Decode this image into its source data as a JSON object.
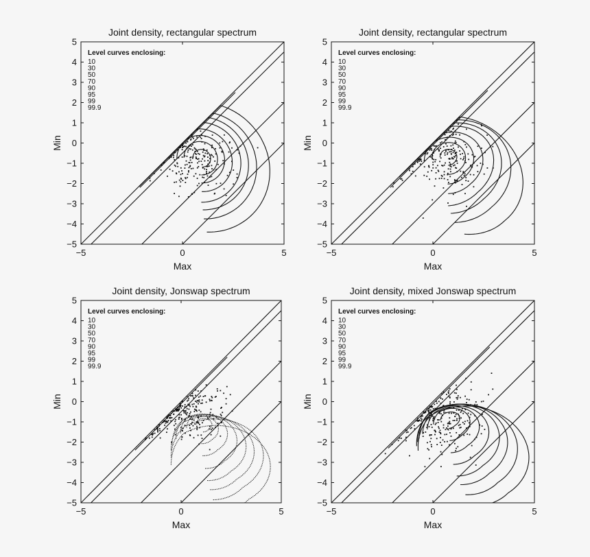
{
  "figure": {
    "background": "#f6f6f6",
    "ink": "#111111"
  },
  "chart_data": [
    {
      "type": "contour",
      "title": "Joint density, rectangular spectrum",
      "xlabel": "Max",
      "ylabel": "Min",
      "xlim": [
        -5,
        5
      ],
      "ylim": [
        -5,
        5
      ],
      "xticks": [
        -5,
        0,
        5
      ],
      "yticks": [
        -5,
        -4,
        -3,
        -2,
        -1,
        0,
        1,
        2,
        3,
        4,
        5
      ],
      "xtick_labels": [
        "−5",
        "0",
        "5"
      ],
      "ytick_labels": [
        "−5",
        "−4",
        "−3",
        "−2",
        "−1",
        "0",
        "1",
        "2",
        "3",
        "4",
        "5"
      ],
      "annotation": {
        "heading": "Level curves enclosing:",
        "levels": [
          "10",
          "30",
          "50",
          "70",
          "90",
          "95",
          "99",
          "99.9"
        ]
      },
      "diagonal_lines": [
        {
          "x": [
            -4.5,
            5
          ],
          "y": [
            -5,
            4.5
          ]
        },
        {
          "x": [
            -5,
            5
          ],
          "y": [
            -5,
            5
          ]
        },
        {
          "x": [
            -2,
            5
          ],
          "y": [
            -5,
            2
          ]
        },
        {
          "x": [
            0,
            5
          ],
          "y": [
            -5,
            0
          ]
        }
      ],
      "contours": [
        {
          "level": "10",
          "center": [
            0.95,
            -0.75
          ],
          "rx": 0.45,
          "ry": 0.42,
          "skew": 0,
          "rise": 0
        },
        {
          "level": "30",
          "center": [
            0.9,
            -0.75
          ],
          "rx": 0.85,
          "ry": 0.8,
          "skew": 0,
          "rise": 0
        },
        {
          "level": "50",
          "center": [
            0.9,
            -0.8
          ],
          "rx": 1.2,
          "ry": 1.15,
          "skew": 0,
          "rise": 0
        },
        {
          "level": "70",
          "center": [
            0.9,
            -0.85
          ],
          "rx": 1.6,
          "ry": 1.5,
          "skew": 0,
          "rise": 0
        },
        {
          "level": "90",
          "center": [
            0.9,
            -0.95
          ],
          "rx": 2.0,
          "ry": 1.95,
          "skew": 0,
          "rise": 0
        },
        {
          "level": "95",
          "center": [
            0.95,
            -1.0
          ],
          "rx": 2.35,
          "ry": 2.25,
          "skew": 0,
          "rise": 0
        },
        {
          "level": "99",
          "center": [
            1.0,
            -1.1
          ],
          "rx": 2.7,
          "ry": 2.6,
          "skew": 0,
          "rise": 0
        },
        {
          "level": "99.9",
          "center": [
            1.1,
            -1.2
          ],
          "rx": 3.3,
          "ry": 3.1,
          "skew": 0,
          "rise": 0
        }
      ],
      "cap_line_shift": 0.0,
      "cap_x_range": [
        -2.1,
        2.6
      ],
      "scatter": {
        "count": 210,
        "center": [
          0.8,
          -0.8
        ],
        "spread": [
          0.95,
          0.8
        ],
        "seed": 11
      }
    },
    {
      "type": "contour",
      "title": "Joint density, rectangular spectrum",
      "xlabel": "Max",
      "ylabel": "Min",
      "xlim": [
        -5,
        5
      ],
      "ylim": [
        -5,
        5
      ],
      "xticks": [
        -5,
        0,
        5
      ],
      "yticks": [
        -5,
        -4,
        -3,
        -2,
        -1,
        0,
        1,
        2,
        3,
        4,
        5
      ],
      "xtick_labels": [
        "−5",
        "0",
        "5"
      ],
      "ytick_labels": [
        "−5",
        "−4",
        "−3",
        "−2",
        "−1",
        "0",
        "1",
        "2",
        "3",
        "4",
        "5"
      ],
      "annotation": {
        "heading": "Level curves enclosing:",
        "levels": [
          "10",
          "30",
          "50",
          "70",
          "90",
          "95",
          "99",
          "99.9"
        ]
      },
      "diagonal_lines": [
        {
          "x": [
            -4.5,
            5
          ],
          "y": [
            -5,
            4.5
          ]
        },
        {
          "x": [
            -5,
            5
          ],
          "y": [
            -5,
            5
          ]
        },
        {
          "x": [
            -2,
            5
          ],
          "y": [
            -5,
            2
          ]
        },
        {
          "x": [
            0,
            5
          ],
          "y": [
            -5,
            0
          ]
        }
      ],
      "contours": [
        {
          "level": "10",
          "center": [
            0.75,
            -0.7
          ],
          "rx": 0.4,
          "ry": 0.4,
          "skew": 0.1,
          "rise": 0.1
        },
        {
          "level": "30",
          "center": [
            0.75,
            -0.75
          ],
          "rx": 0.8,
          "ry": 0.8,
          "skew": 0.2,
          "rise": 0.15
        },
        {
          "level": "50",
          "center": [
            0.75,
            -0.85
          ],
          "rx": 1.15,
          "ry": 1.2,
          "skew": 0.3,
          "rise": 0.2
        },
        {
          "level": "70",
          "center": [
            0.8,
            -0.95
          ],
          "rx": 1.5,
          "ry": 1.6,
          "skew": 0.4,
          "rise": 0.25
        },
        {
          "level": "90",
          "center": [
            0.85,
            -1.1
          ],
          "rx": 1.9,
          "ry": 2.1,
          "skew": 0.5,
          "rise": 0.3
        },
        {
          "level": "95",
          "center": [
            0.95,
            -1.2
          ],
          "rx": 2.2,
          "ry": 2.35,
          "skew": 0.55,
          "rise": 0.35
        },
        {
          "level": "99",
          "center": [
            1.1,
            -1.35
          ],
          "rx": 2.55,
          "ry": 2.6,
          "skew": 0.6,
          "rise": 0.4
        },
        {
          "level": "99.9",
          "center": [
            1.3,
            -1.55
          ],
          "rx": 3.2,
          "ry": 2.7,
          "skew": 0.7,
          "rise": 0.45
        }
      ],
      "cap_line_shift": 0.0,
      "cap_x_range": [
        -2.1,
        2.7
      ],
      "scatter": {
        "count": 230,
        "center": [
          0.7,
          -0.8
        ],
        "spread": [
          0.9,
          0.8
        ],
        "seed": 23
      }
    },
    {
      "type": "contour",
      "title": "Joint density, Jonswap spectrum",
      "xlabel": "Max",
      "ylabel": "Min",
      "xlim": [
        -5,
        5
      ],
      "ylim": [
        -5,
        5
      ],
      "xticks": [
        -5,
        0,
        5
      ],
      "yticks": [
        -5,
        -4,
        -3,
        -2,
        -1,
        0,
        1,
        2,
        3,
        4,
        5
      ],
      "xtick_labels": [
        "−5",
        "0",
        "5"
      ],
      "ytick_labels": [
        "−5",
        "−4",
        "−3",
        "−2",
        "−1",
        "0",
        "1",
        "2",
        "3",
        "4",
        "5"
      ],
      "annotation": {
        "heading": "Level curves enclosing:",
        "levels": [
          "10",
          "30",
          "50",
          "70",
          "90",
          "95",
          "99",
          "99.9"
        ]
      },
      "diagonal_lines": [
        {
          "x": [
            -4.5,
            5
          ],
          "y": [
            -5,
            4.5
          ]
        },
        {
          "x": [
            -5,
            5
          ],
          "y": [
            -5,
            5
          ]
        },
        {
          "x": [
            -2,
            5
          ],
          "y": [
            -5,
            2
          ]
        },
        {
          "x": [
            0,
            5
          ],
          "y": [
            -5,
            0
          ]
        }
      ],
      "contours": [
        {
          "level": "10",
          "center": [
            1.1,
            -1.15
          ],
          "rx": 0.35,
          "ry": 0.35,
          "skew": 0.3,
          "rise": 0.2
        },
        {
          "level": "30",
          "center": [
            1.0,
            -1.35
          ],
          "rx": 0.75,
          "ry": 0.7,
          "skew": 0.5,
          "rise": 0.3
        },
        {
          "level": "50",
          "center": [
            1.05,
            -1.6
          ],
          "rx": 1.1,
          "ry": 1.05,
          "skew": 0.7,
          "rise": 0.4
        },
        {
          "level": "70",
          "center": [
            1.15,
            -1.9
          ],
          "rx": 1.45,
          "ry": 1.35,
          "skew": 0.9,
          "rise": 0.5
        },
        {
          "level": "90",
          "center": [
            1.25,
            -2.2
          ],
          "rx": 1.75,
          "ry": 1.65,
          "skew": 1.1,
          "rise": 0.6
        },
        {
          "level": "95",
          "center": [
            1.4,
            -2.45
          ],
          "rx": 1.95,
          "ry": 1.85,
          "skew": 1.3,
          "rise": 0.7
        },
        {
          "level": "99",
          "center": [
            1.6,
            -2.75
          ],
          "rx": 2.1,
          "ry": 2.1,
          "skew": 1.5,
          "rise": 0.8
        },
        {
          "level": "99.9",
          "center": [
            1.75,
            -3.2
          ],
          "rx": 2.3,
          "ry": 2.2,
          "skew": 1.7,
          "rise": 0.9
        }
      ],
      "cap_line_shift": 0.0,
      "cap_x_range": [
        -2.3,
        2.3
      ],
      "dashed": true,
      "scatter": {
        "count": 260,
        "center": [
          0.4,
          -0.5
        ],
        "spread": [
          0.9,
          0.7
        ],
        "seed": 37
      }
    },
    {
      "type": "contour",
      "title": "Joint density, mixed Jonswap spectrum",
      "xlabel": "Max",
      "ylabel": "Min",
      "xlim": [
        -5,
        5
      ],
      "ylim": [
        -5,
        5
      ],
      "xticks": [
        -5,
        0,
        5
      ],
      "yticks": [
        -5,
        -4,
        -3,
        -2,
        -1,
        0,
        1,
        2,
        3,
        4,
        5
      ],
      "xtick_labels": [
        "−5",
        "0",
        "5"
      ],
      "ytick_labels": [
        "−5",
        "−4",
        "−3",
        "−2",
        "−1",
        "0",
        "1",
        "2",
        "3",
        "4",
        "5"
      ],
      "annotation": {
        "heading": "Level curves enclosing:",
        "levels": [
          "10",
          "30",
          "50",
          "70",
          "90",
          "95",
          "99",
          "99.9"
        ]
      },
      "diagonal_lines": [
        {
          "x": [
            -4.5,
            5
          ],
          "y": [
            -5,
            4.5
          ]
        },
        {
          "x": [
            -5,
            5
          ],
          "y": [
            -5,
            5
          ]
        },
        {
          "x": [
            -2,
            5
          ],
          "y": [
            -5,
            2
          ]
        },
        {
          "x": [
            0,
            5
          ],
          "y": [
            -5,
            0
          ]
        }
      ],
      "contours": [
        {
          "level": "10",
          "center": [
            0.8,
            -0.9
          ],
          "rx": 0.4,
          "ry": 0.45,
          "skew": 0.3,
          "rise": 0.25
        },
        {
          "level": "30",
          "center": [
            0.85,
            -1.1
          ],
          "rx": 0.8,
          "ry": 0.85,
          "skew": 0.5,
          "rise": 0.4
        },
        {
          "level": "50",
          "center": [
            0.9,
            -1.35
          ],
          "rx": 1.15,
          "ry": 1.2,
          "skew": 0.7,
          "rise": 0.55
        },
        {
          "level": "70",
          "center": [
            1.0,
            -1.6
          ],
          "rx": 1.5,
          "ry": 1.5,
          "skew": 0.85,
          "rise": 0.7
        },
        {
          "level": "90",
          "center": [
            1.15,
            -1.85
          ],
          "rx": 1.85,
          "ry": 1.8,
          "skew": 1.0,
          "rise": 0.85
        },
        {
          "level": "95",
          "center": [
            1.3,
            -2.05
          ],
          "rx": 2.1,
          "ry": 2.0,
          "skew": 1.1,
          "rise": 0.95
        },
        {
          "level": "99",
          "center": [
            1.5,
            -2.3
          ],
          "rx": 2.4,
          "ry": 2.2,
          "skew": 1.25,
          "rise": 1.05
        },
        {
          "level": "99.9",
          "center": [
            1.8,
            -2.6
          ],
          "rx": 2.7,
          "ry": 2.35,
          "skew": 1.4,
          "rise": 1.15
        }
      ],
      "cap_line_shift": 0.0,
      "cap_x_range": [
        -2.2,
        2.8
      ],
      "scatter": {
        "count": 260,
        "center": [
          0.5,
          -0.8
        ],
        "spread": [
          1.0,
          0.95
        ],
        "seed": 53
      }
    }
  ]
}
